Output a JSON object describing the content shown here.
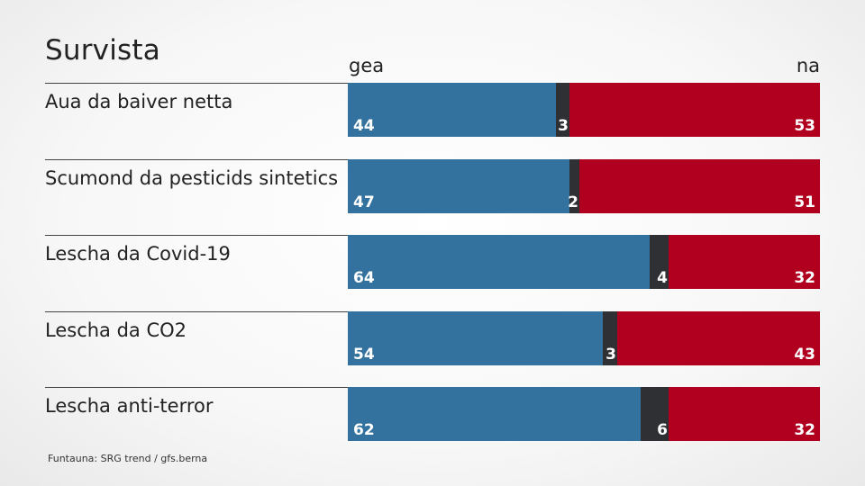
{
  "title": "Survista",
  "column_headers": {
    "yes": "gea",
    "no": "na"
  },
  "source": "Funtauna: SRG trend / gfs.berna",
  "colors": {
    "yes": "#33729e",
    "neutral": "#2f3033",
    "no": "#b1001f"
  },
  "chart_data": {
    "type": "bar",
    "orientation": "horizontal",
    "stacked": true,
    "title": "Survista",
    "categories": [
      "Aua da baiver netta",
      "Scumond da pesticids sintetics",
      "Lescha da Covid-19",
      "Lescha da CO2",
      "Lescha anti-terror"
    ],
    "series": [
      {
        "name": "gea",
        "values": [
          44,
          47,
          64,
          54,
          62
        ]
      },
      {
        "name": "",
        "values": [
          3,
          2,
          4,
          3,
          6
        ]
      },
      {
        "name": "na",
        "values": [
          53,
          51,
          32,
          43,
          32
        ]
      }
    ],
    "xlim": [
      0,
      100
    ],
    "grid": false,
    "legend": "top"
  }
}
